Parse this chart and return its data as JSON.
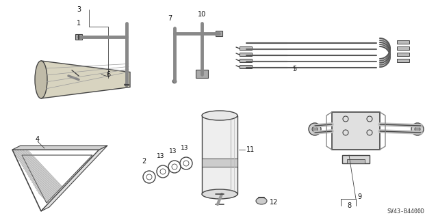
{
  "bg_color": "#ffffff",
  "line_color": "#444444",
  "label_color": "#111111",
  "part_code": "SV43-B4400D",
  "figsize": [
    6.4,
    3.19
  ],
  "dpi": 100
}
